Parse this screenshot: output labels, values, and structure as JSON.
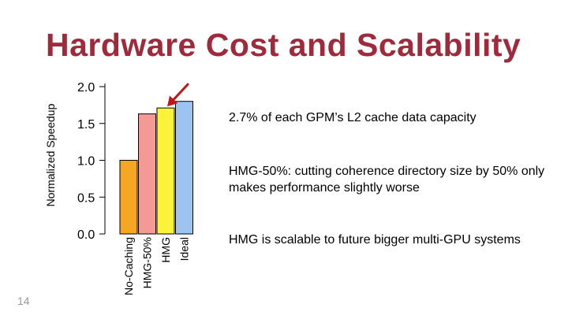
{
  "slide": {
    "title": "Hardware Cost and Scalability",
    "number": "14",
    "notes": [
      "2.7% of each GPM’s L2 cache data capacity",
      "HMG-50%: cutting coherence directory size by 50% only makes performance slightly worse",
      "HMG is scalable to future bigger multi-GPU systems"
    ]
  },
  "chart_data": {
    "type": "bar",
    "title": "",
    "ylabel": "Normalized Speedup",
    "xlabel": "",
    "ylim": [
      0,
      2.0
    ],
    "yticks": [
      0.0,
      0.5,
      1.0,
      1.5,
      2.0
    ],
    "ytick_labels": [
      "0.0",
      "0.5",
      "1.0",
      "1.5",
      "2.0"
    ],
    "categories": [
      "No-Caching",
      "HMG-50%",
      "HMG",
      "Ideal"
    ],
    "values": [
      1.0,
      1.63,
      1.71,
      1.8
    ],
    "colors": [
      "#f5a623",
      "#f49a96",
      "#fbf23b",
      "#9dc3f0"
    ],
    "grid": false,
    "annotation": {
      "type": "arrow",
      "target": "HMG",
      "color": "#c0171b"
    }
  }
}
